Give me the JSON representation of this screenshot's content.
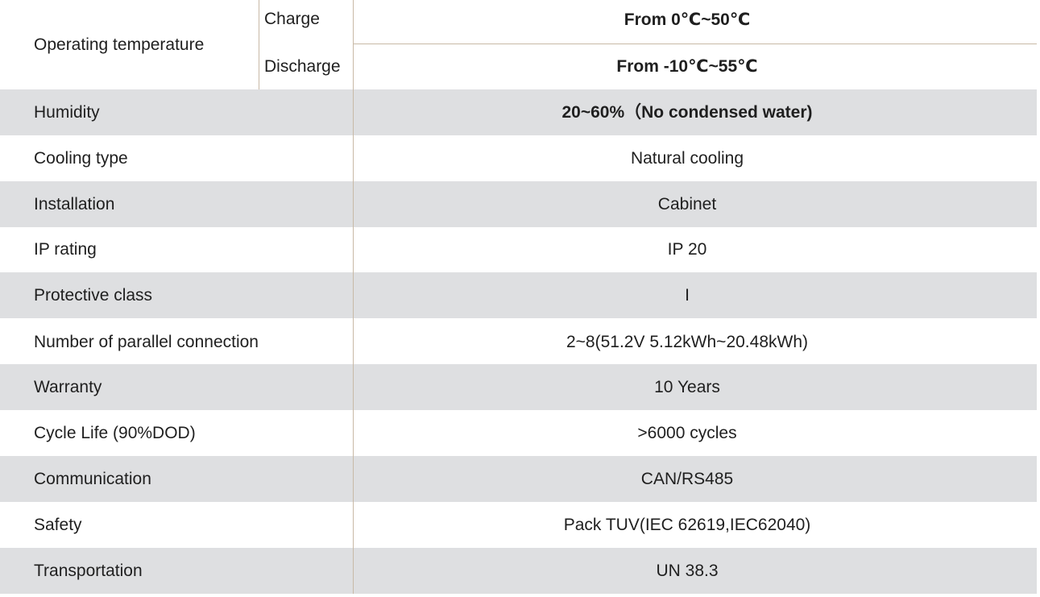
{
  "operating_temperature": {
    "label": "Operating temperature",
    "charge_label": "Charge",
    "charge_value": "From 0℃~50℃",
    "discharge_label": "Discharge",
    "discharge_value": "From -10℃~55℃"
  },
  "rows": [
    {
      "label": "Humidity",
      "value": "20~60%（No condensed water)"
    },
    {
      "label": "Cooling type",
      "value": "Natural cooling"
    },
    {
      "label": "Installation",
      "value": "Cabinet"
    },
    {
      "label": "IP rating",
      "value": "IP 20"
    },
    {
      "label": "Protective class",
      "value": "I"
    },
    {
      "label": "Number of parallel  connection",
      "value": "2~8(51.2V 5.12kWh~20.48kWh)"
    },
    {
      "label": "Warranty",
      "value": "10 Years"
    },
    {
      "label": "Cycle Life (90%DOD)",
      "value": ">6000 cycles"
    },
    {
      "label": "Communication",
      "value": "CAN/RS485"
    },
    {
      "label": "Safety",
      "value": "Pack TUV(IEC 62619,IEC62040)"
    },
    {
      "label": "Transportation",
      "value": "UN 38.3"
    }
  ]
}
